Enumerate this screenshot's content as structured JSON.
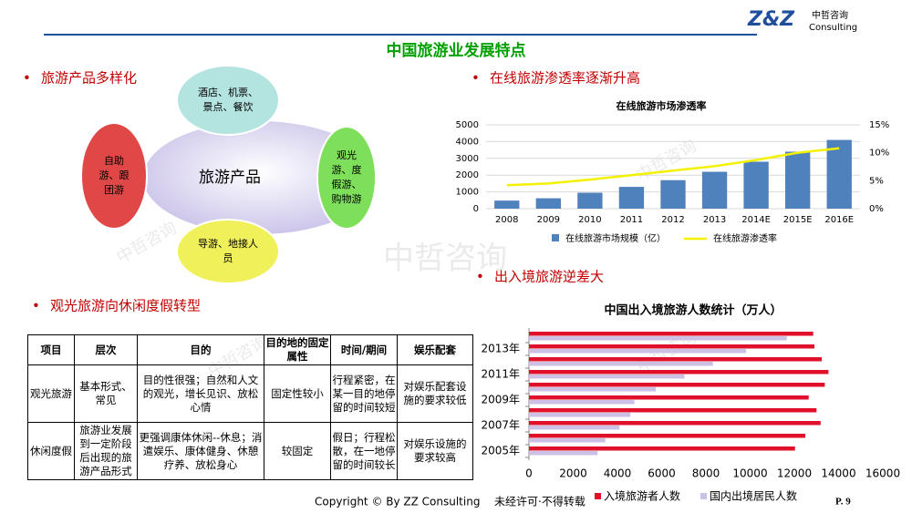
{
  "header": {
    "logo": "Z&Z",
    "company": "中哲咨询",
    "company_en": "Consulting",
    "title": "中国旅游业发展特点"
  },
  "sections": [
    "旅游产品多样化",
    "在线旅游渗透率逐渐升高",
    "出入境旅游逆差大",
    "观光旅游向休闲度假转型"
  ],
  "diagram": {
    "center": "旅游产品",
    "nodes": [
      {
        "lines": [
          "酒店、机票、",
          "景点、餐饮"
        ]
      },
      {
        "lines": [
          "自助",
          "游、跟",
          "团游"
        ]
      },
      {
        "lines": [
          "观光",
          "游、度",
          "假游、",
          "购物游"
        ]
      },
      {
        "lines": [
          "导游、地接人",
          "员"
        ]
      }
    ]
  },
  "table": {
    "header": [
      "项目",
      "层次",
      "目的",
      "目的地的固定属性",
      "时间/期间",
      "娱乐配套"
    ],
    "rows": [
      [
        "观光旅游",
        "基本形式、常见",
        "目的性很强；自然和人文的观光，增长见识、放松心情",
        "固定性较小",
        "行程紧密，在某一目的地停留的时间较短",
        "对娱乐配套设施的要求较低"
      ],
      [
        "休闲度假",
        "旅游业发展到一定阶段后出现的旅游产品形式",
        "更强调康体休闲--休息；消遣娱乐、康体健身、休憩疗养、放松身心",
        "较固定",
        "假日；行程松散，在一地停留的时间较长",
        "对娱乐设施的要求较高"
      ]
    ]
  },
  "chart_data": [
    {
      "type": "bar-line",
      "title": "在线旅游市场渗透率",
      "categories": [
        "2008",
        "2009",
        "2010",
        "2011",
        "2012",
        "2013",
        "2014E",
        "2015E",
        "2016E"
      ],
      "series": [
        {
          "name": "在线旅游市场规模（亿）",
          "color": "#4f81bd",
          "values": [
            480,
            620,
            950,
            1300,
            1700,
            2200,
            2800,
            3400,
            4100
          ]
        },
        {
          "name": "在线旅游渗透率",
          "color": "#f2f200",
          "axis": "y2",
          "values": [
            4.2,
            4.5,
            5.2,
            6.0,
            6.8,
            7.6,
            8.7,
            10.0,
            10.8
          ]
        }
      ],
      "ylim": [
        0,
        5000
      ],
      "yticks": [
        0,
        1000,
        2000,
        3000,
        4000,
        5000
      ],
      "y2lim": [
        0,
        15
      ],
      "y2ticks": [
        {
          "value": 0,
          "label": "0%"
        },
        {
          "value": 5,
          "label": "5%"
        },
        {
          "value": 10,
          "label": "10%"
        },
        {
          "value": 15,
          "label": "15%"
        }
      ],
      "grid": true
    },
    {
      "type": "hbar",
      "title": "中国出入境旅游人数统计（万人）",
      "categories": [
        "2005年",
        null,
        "2007年",
        null,
        "2009年",
        null,
        "2011年",
        null,
        "2013年",
        null
      ],
      "series": [
        {
          "name": "入境旅游者人数",
          "color": "#e0102a",
          "values": [
            12029,
            12494,
            13187,
            13003,
            12648,
            13376,
            13542,
            13241,
            12908,
            12850
          ]
        },
        {
          "name": "国内出境居民人数",
          "color": "#ccc0e4",
          "values": [
            3103,
            3452,
            4095,
            4584,
            4766,
            5739,
            7025,
            8318,
            9819,
            11659
          ]
        }
      ],
      "xlim": [
        0,
        16000
      ],
      "xticks": [
        0,
        2000,
        4000,
        6000,
        8000,
        10000,
        12000,
        14000,
        16000
      ],
      "grid": false
    }
  ],
  "watermarks": [
    "中哲咨询",
    "中哲咨询",
    "中哲咨询",
    "中哲咨询",
    "中哲咨询"
  ],
  "footer": {
    "copyright": "Copyright © By  ZZ Consulting",
    "notice": "未经许可·不得转载",
    "page": "P. 9"
  }
}
